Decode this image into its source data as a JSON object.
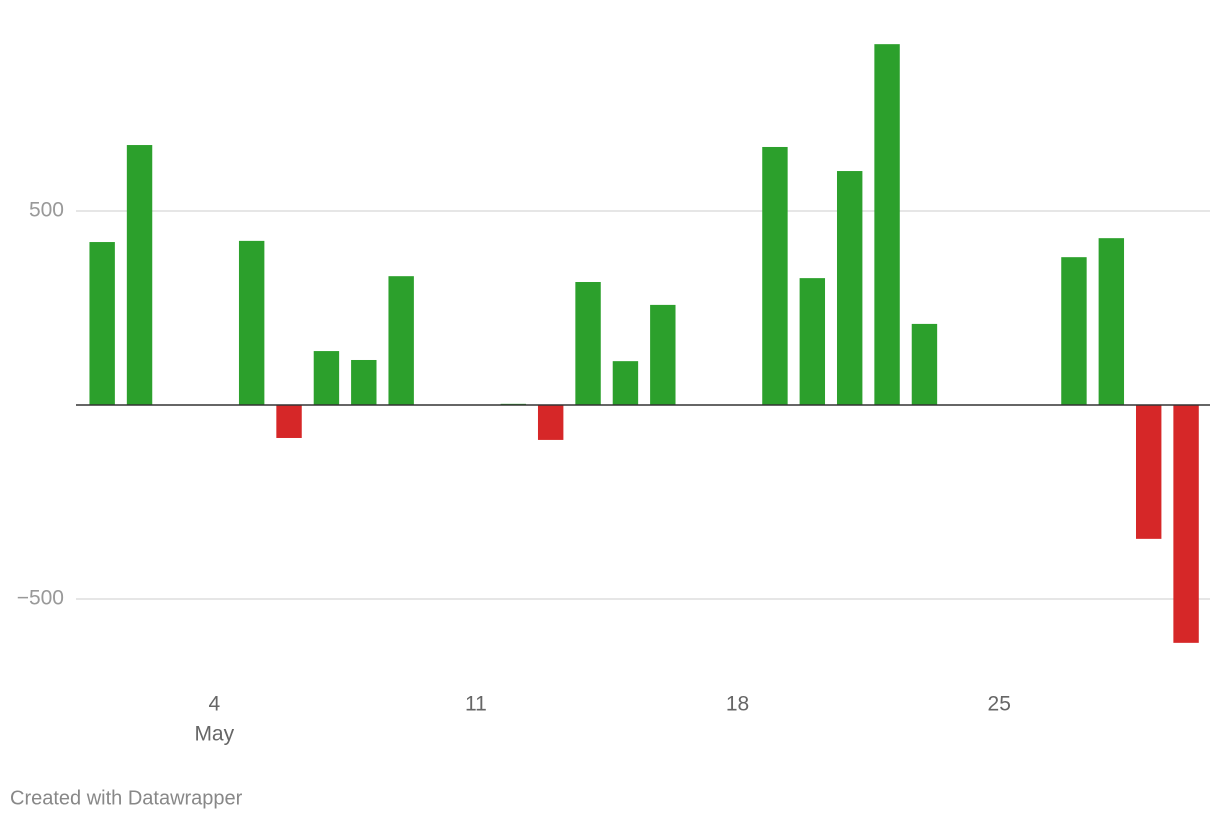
{
  "chart_data": {
    "type": "bar",
    "x": [
      1,
      2,
      3,
      4,
      5,
      6,
      7,
      8,
      9,
      10,
      11,
      12,
      13,
      14,
      15,
      16,
      17,
      18,
      19,
      20,
      21,
      22,
      23,
      24,
      25,
      26,
      27,
      28,
      29,
      30
    ],
    "values": [
      420,
      670,
      0,
      0,
      423,
      -85,
      139,
      116,
      332,
      0,
      0,
      3,
      -90,
      317,
      113,
      258,
      0,
      0,
      665,
      327,
      603,
      930,
      209,
      0,
      0,
      0,
      381,
      430,
      -345,
      -613
    ],
    "positive_color": "#2ca02c",
    "negative_color": "#d62728",
    "xlim": [
      0.3,
      30.64
    ],
    "xticks": [
      4,
      11,
      18,
      25
    ],
    "month_label": "May",
    "ylim": [
      -700,
      950
    ],
    "yticks": [
      {
        "value": -500,
        "label": "−500"
      },
      500
    ],
    "grid": true,
    "credit": "Created with Datawrapper"
  }
}
